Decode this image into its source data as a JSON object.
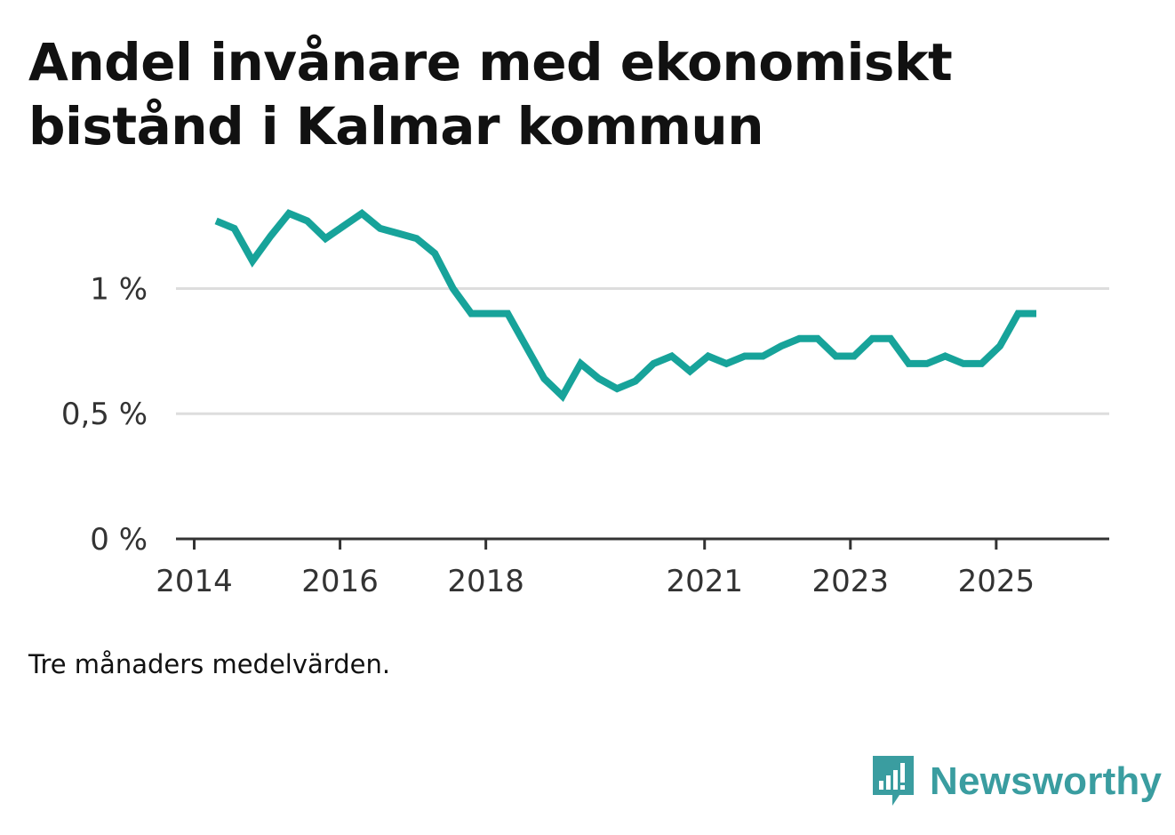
{
  "title": "Andel invånare med ekonomiskt bistånd i Kalmar kommun",
  "note": "Tre månaders medelvärden.",
  "brand": {
    "name": "Newsworthy",
    "icon": "bar-chart-speech-bubble-icon",
    "color": "#3a9da0"
  },
  "colors": {
    "line": "#17a39a",
    "grid": "#dddddd",
    "axis": "#333333"
  },
  "chart_data": {
    "type": "line",
    "title": "Andel invånare med ekonomiskt bistånd i Kalmar kommun",
    "xlabel": "",
    "ylabel": "",
    "xlim": [
      2013.75,
      2026.55
    ],
    "ylim": [
      0,
      1.3
    ],
    "grid": true,
    "y_ticks": [
      {
        "value": 0,
        "label": "0 %"
      },
      {
        "value": 0.5,
        "label": "0,5 %"
      },
      {
        "value": 1,
        "label": "1 %"
      }
    ],
    "x_ticks": [
      {
        "value": 2014,
        "label": "2014"
      },
      {
        "value": 2016,
        "label": "2016"
      },
      {
        "value": 2018,
        "label": "2018"
      },
      {
        "value": 2021,
        "label": "2021"
      },
      {
        "value": 2023,
        "label": "2023"
      },
      {
        "value": 2025,
        "label": "2025"
      }
    ],
    "series": [
      {
        "name": "Andel invånare med ekonomiskt bistånd",
        "x": [
          2014.3,
          2014.55,
          2014.8,
          2015.05,
          2015.3,
          2015.55,
          2015.8,
          2016.05,
          2016.3,
          2016.55,
          2016.8,
          2017.05,
          2017.3,
          2017.55,
          2017.8,
          2018.05,
          2018.3,
          2018.55,
          2018.8,
          2019.05,
          2019.3,
          2019.55,
          2019.8,
          2020.05,
          2020.3,
          2020.55,
          2020.8,
          2021.05,
          2021.3,
          2021.55,
          2021.8,
          2022.05,
          2022.3,
          2022.55,
          2022.8,
          2023.05,
          2023.3,
          2023.55,
          2023.8,
          2024.05,
          2024.3,
          2024.55,
          2024.8,
          2025.05,
          2025.3,
          2025.55
        ],
        "values": [
          1.27,
          1.24,
          1.11,
          1.21,
          1.3,
          1.27,
          1.2,
          1.25,
          1.3,
          1.24,
          1.22,
          1.2,
          1.14,
          1.0,
          0.9,
          0.9,
          0.9,
          0.77,
          0.64,
          0.57,
          0.7,
          0.64,
          0.6,
          0.63,
          0.7,
          0.73,
          0.67,
          0.73,
          0.7,
          0.73,
          0.73,
          0.77,
          0.8,
          0.8,
          0.73,
          0.73,
          0.8,
          0.8,
          0.7,
          0.7,
          0.73,
          0.7,
          0.7,
          0.77,
          0.9,
          0.9
        ]
      }
    ]
  }
}
